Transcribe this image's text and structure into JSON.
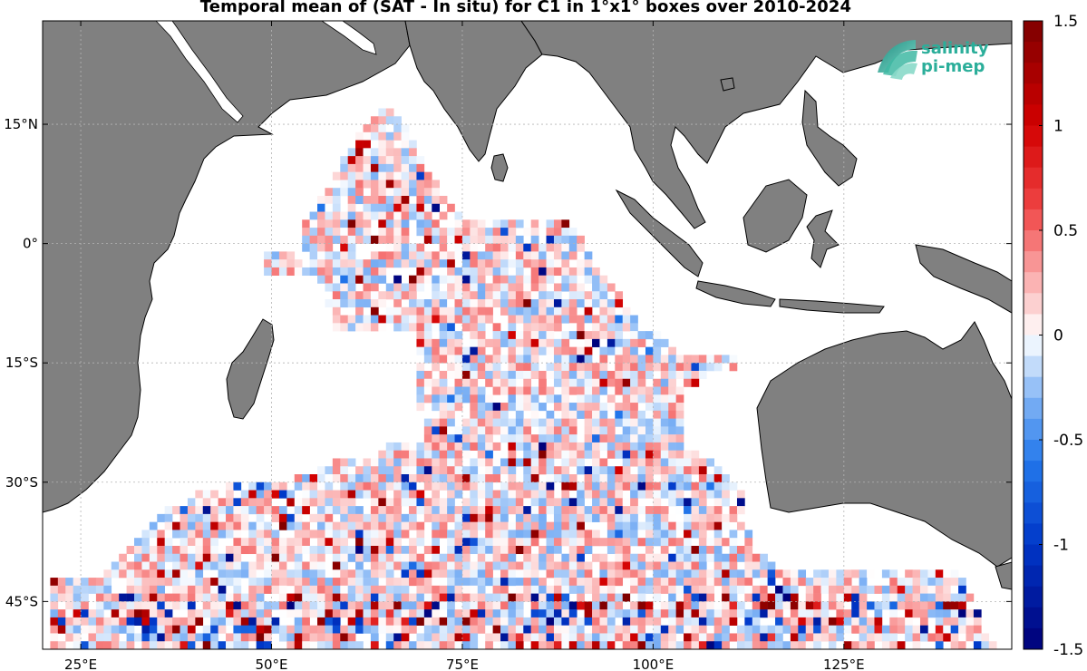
{
  "title": "Temporal mean of (SAT - In situ) for C1 in 1°x1° boxes over 2010-2024",
  "logo": {
    "line1": "salinity",
    "line2": "pi-mep"
  },
  "colors": {
    "land": "#808080",
    "grid": "#b4b4b4",
    "frame": "#000000",
    "logo": "#2bae9a"
  },
  "chart_data": {
    "type": "heatmap",
    "projection": "equirectangular",
    "lon_range": [
      20,
      147
    ],
    "lat_range": [
      -51,
      28
    ],
    "lon_ticks": [
      {
        "value": 25,
        "label": "25°E"
      },
      {
        "value": 50,
        "label": "50°E"
      },
      {
        "value": 75,
        "label": "75°E"
      },
      {
        "value": 100,
        "label": "100°E"
      },
      {
        "value": 125,
        "label": "125°E"
      }
    ],
    "lat_ticks": [
      {
        "value": 15,
        "label": "15°N"
      },
      {
        "value": 0,
        "label": "0°"
      },
      {
        "value": -15,
        "label": "15°S"
      },
      {
        "value": -30,
        "label": "30°S"
      },
      {
        "value": -45,
        "label": "45°S"
      }
    ],
    "grid": true,
    "colorbar": {
      "min": -1.5,
      "max": 1.5,
      "step": 0.1,
      "tick_labels": [
        "1.5",
        "1",
        "0.5",
        "0",
        "-0.5",
        "-1",
        "-1.5"
      ],
      "tick_values": [
        1.5,
        1,
        0.5,
        0,
        -0.5,
        -1,
        -1.5
      ],
      "colormap": "blue-white-red diverging"
    },
    "cell_size_deg": 1,
    "note_values": "per-box temporal mean values mostly between -0.5 and 0.5; extremes near ±1.5 at scattered boxes",
    "data_region_rows": [
      [
        17,
        64,
        66
      ],
      [
        16,
        63,
        67
      ],
      [
        15,
        62,
        68
      ],
      [
        14,
        61,
        68
      ],
      [
        13,
        61,
        69
      ],
      [
        12,
        60,
        69
      ],
      [
        11,
        59,
        70
      ],
      [
        10,
        59,
        70
      ],
      [
        9,
        58,
        71
      ],
      [
        8,
        58,
        72
      ],
      [
        7,
        57,
        72
      ],
      [
        6,
        56,
        73
      ],
      [
        5,
        56,
        74
      ],
      [
        4,
        55,
        75
      ],
      [
        3,
        54,
        89
      ],
      [
        2,
        54,
        90
      ],
      [
        1,
        54,
        91
      ],
      [
        0,
        54,
        91
      ],
      [
        -1,
        49,
        92
      ],
      [
        -2,
        49,
        92
      ],
      [
        -3,
        49,
        93
      ],
      [
        -4,
        56,
        94
      ],
      [
        -5,
        56,
        95
      ],
      [
        -6,
        57,
        96
      ],
      [
        -7,
        57,
        96
      ],
      [
        -8,
        58,
        97
      ],
      [
        -9,
        58,
        98
      ],
      [
        -10,
        58,
        99
      ],
      [
        -11,
        69,
        101
      ],
      [
        -12,
        69,
        102
      ],
      [
        -13,
        69,
        103
      ],
      [
        -14,
        69,
        111
      ],
      [
        -15,
        69,
        111
      ],
      [
        -16,
        69,
        108
      ],
      [
        -17,
        69,
        106
      ],
      [
        -18,
        69,
        104
      ],
      [
        -19,
        69,
        104
      ],
      [
        -20,
        69,
        104
      ],
      [
        -21,
        70,
        104
      ],
      [
        -22,
        70,
        104
      ],
      [
        -23,
        70,
        104
      ],
      [
        -24,
        70,
        104
      ],
      [
        -25,
        65,
        104
      ],
      [
        -26,
        64,
        106
      ],
      [
        -27,
        58,
        108
      ],
      [
        -28,
        55,
        109
      ],
      [
        -29,
        52,
        110
      ],
      [
        -30,
        44,
        111
      ],
      [
        -31,
        40,
        112
      ],
      [
        -32,
        38,
        112
      ],
      [
        -33,
        36,
        112
      ],
      [
        -34,
        35,
        112
      ],
      [
        -35,
        34,
        112
      ],
      [
        -36,
        33,
        113
      ],
      [
        -37,
        32,
        113
      ],
      [
        -38,
        31,
        113
      ],
      [
        -39,
        30,
        115
      ],
      [
        -40,
        29,
        117
      ],
      [
        -41,
        28,
        140
      ],
      [
        -42,
        21,
        141
      ],
      [
        -43,
        21,
        141
      ],
      [
        -44,
        21,
        142
      ],
      [
        -45,
        21,
        142
      ],
      [
        -46,
        21,
        143
      ],
      [
        -47,
        21,
        143
      ],
      [
        -48,
        21,
        144
      ],
      [
        -49,
        21,
        144
      ],
      [
        -50,
        21,
        145
      ]
    ]
  }
}
